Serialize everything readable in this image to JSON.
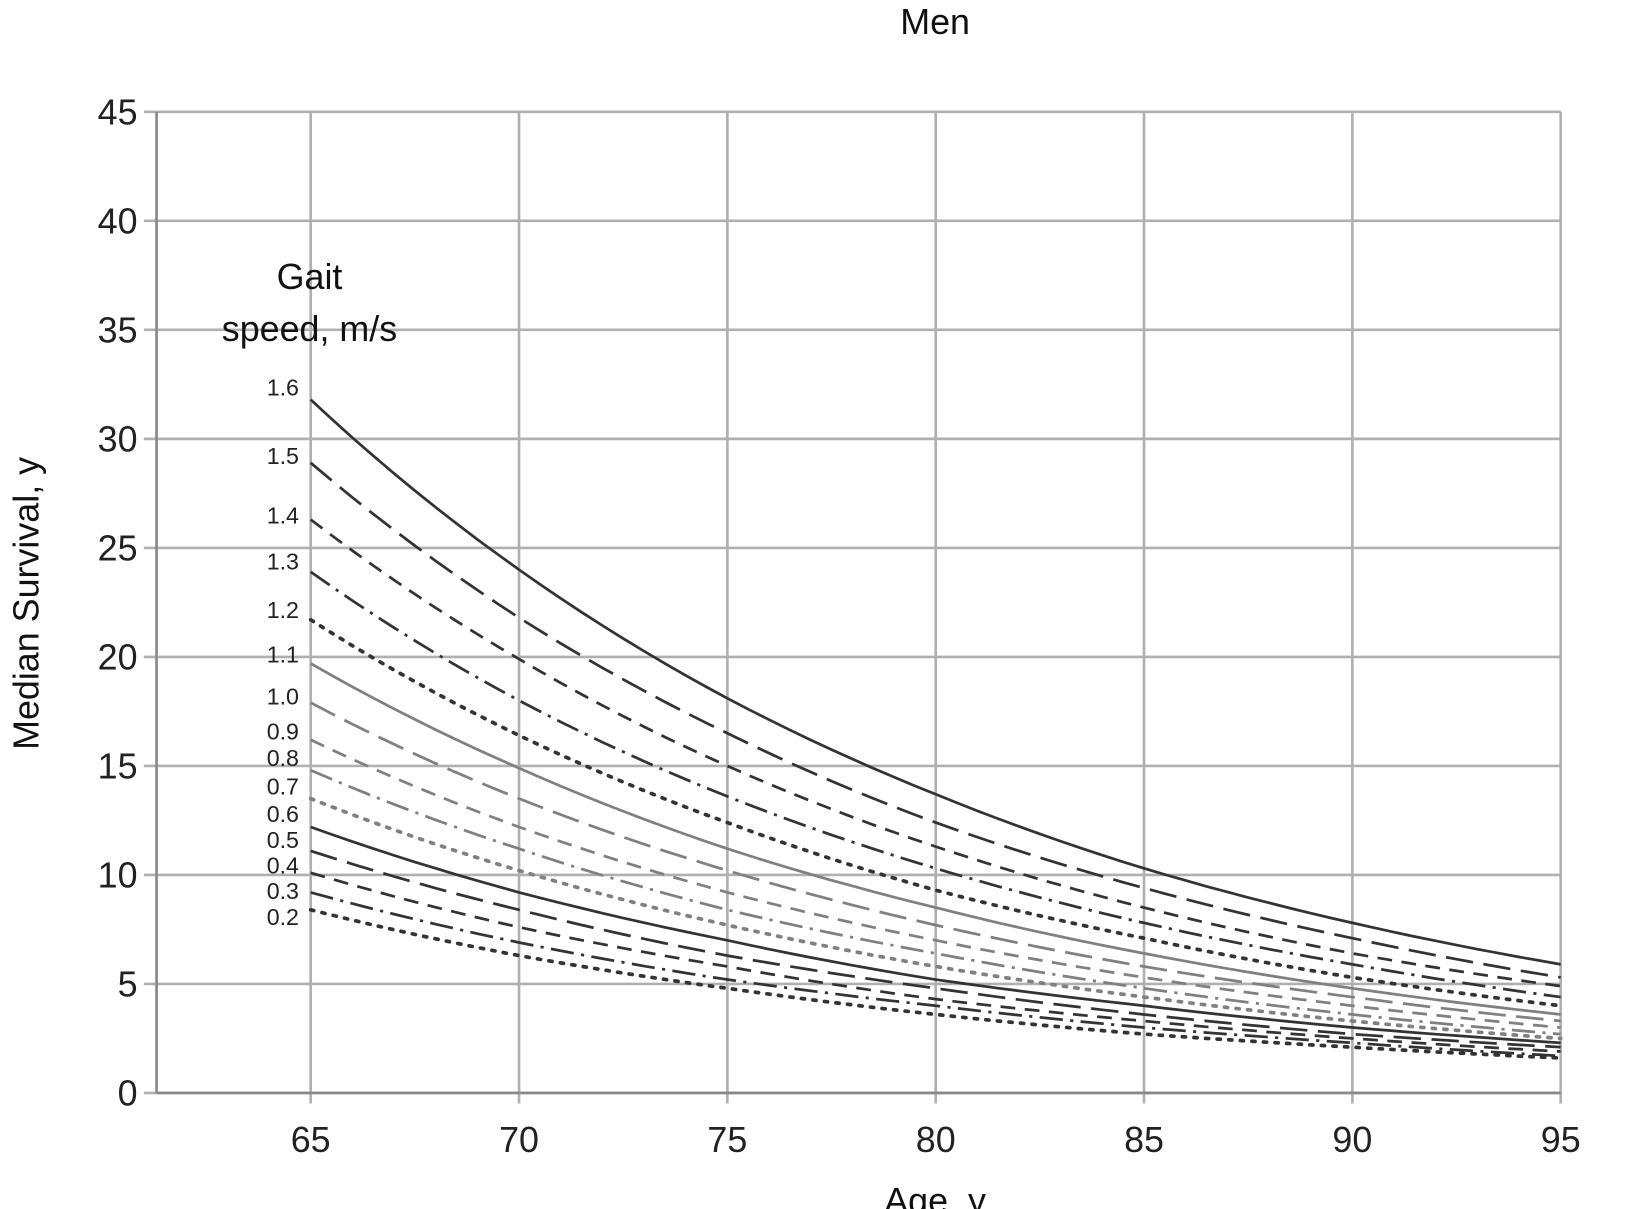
{
  "chart_data": {
    "type": "line",
    "title": "Men",
    "xlabel": "Age, y",
    "ylabel": "Median Survival, y",
    "legend_title": [
      "Gait",
      "speed, m/s"
    ],
    "xlim": [
      61.3,
      95
    ],
    "ylim": [
      0,
      45
    ],
    "xticks": [
      65,
      70,
      75,
      80,
      85,
      90,
      95
    ],
    "yticks": [
      0,
      5,
      10,
      15,
      20,
      25,
      30,
      35,
      40,
      45
    ],
    "grid": true,
    "x": [
      65,
      70,
      75,
      80,
      85,
      90,
      95
    ],
    "series": [
      {
        "name": "1.6",
        "color": "#333333",
        "style": "solid",
        "values": [
          31.8,
          24.0,
          18.1,
          13.7,
          10.3,
          7.8,
          5.9
        ]
      },
      {
        "name": "1.5",
        "color": "#333333",
        "style": "longdash",
        "values": [
          28.9,
          21.8,
          16.5,
          12.4,
          9.4,
          7.1,
          5.3
        ]
      },
      {
        "name": "1.4",
        "color": "#333333",
        "style": "dash",
        "values": [
          26.3,
          19.9,
          15.0,
          11.3,
          8.5,
          6.4,
          4.9
        ]
      },
      {
        "name": "1.3",
        "color": "#333333",
        "style": "dashdot",
        "values": [
          23.9,
          18.0,
          13.6,
          10.3,
          7.8,
          5.9,
          4.4
        ]
      },
      {
        "name": "1.2",
        "color": "#333333",
        "style": "dot",
        "values": [
          21.7,
          16.4,
          12.4,
          9.3,
          7.1,
          5.3,
          4.0
        ]
      },
      {
        "name": "1.1",
        "color": "#808080",
        "style": "solid",
        "values": [
          19.7,
          14.9,
          11.2,
          8.5,
          6.4,
          4.8,
          3.6
        ]
      },
      {
        "name": "1.0",
        "color": "#808080",
        "style": "longdash",
        "values": [
          17.9,
          13.5,
          10.2,
          7.7,
          5.8,
          4.4,
          3.3
        ]
      },
      {
        "name": "0.9",
        "color": "#808080",
        "style": "dash",
        "values": [
          16.2,
          12.2,
          9.2,
          7.0,
          5.3,
          4.0,
          3.0
        ]
      },
      {
        "name": "0.8",
        "color": "#808080",
        "style": "dashdot",
        "values": [
          14.8,
          11.2,
          8.4,
          6.4,
          4.8,
          3.6,
          2.7
        ]
      },
      {
        "name": "0.7",
        "color": "#808080",
        "style": "dot",
        "values": [
          13.5,
          10.2,
          7.7,
          5.8,
          4.4,
          3.3,
          2.5
        ]
      },
      {
        "name": "0.6",
        "color": "#333333",
        "style": "solid",
        "values": [
          12.2,
          9.2,
          7.0,
          5.2,
          4.0,
          3.0,
          2.3
        ]
      },
      {
        "name": "0.5",
        "color": "#333333",
        "style": "longdash",
        "values": [
          11.1,
          8.4,
          6.3,
          4.8,
          3.6,
          2.7,
          2.1
        ]
      },
      {
        "name": "0.4",
        "color": "#333333",
        "style": "dash",
        "values": [
          10.1,
          7.6,
          5.8,
          4.3,
          3.3,
          2.5,
          1.9
        ]
      },
      {
        "name": "0.3",
        "color": "#333333",
        "style": "dashdot",
        "values": [
          9.2,
          6.9,
          5.2,
          4.0,
          3.0,
          2.3,
          1.7
        ]
      },
      {
        "name": "0.2",
        "color": "#333333",
        "style": "dot",
        "values": [
          8.4,
          6.3,
          4.8,
          3.6,
          2.7,
          2.1,
          1.6
        ]
      }
    ]
  }
}
